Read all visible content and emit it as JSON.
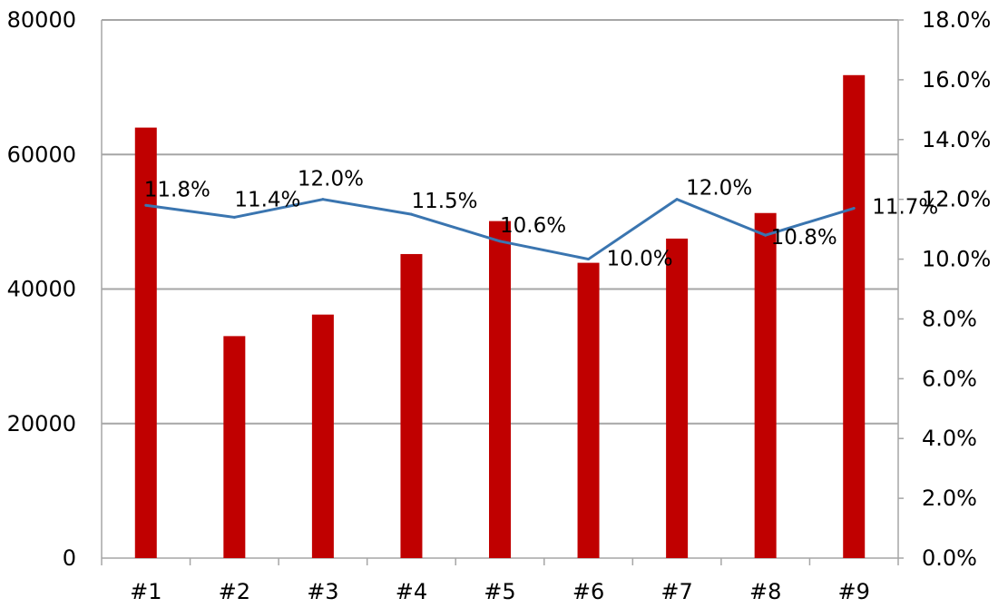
{
  "chart_data": {
    "type": "bar",
    "categories": [
      "#1",
      "#2",
      "#3",
      "#4",
      "#5",
      "#6",
      "#7",
      "#8",
      "#9"
    ],
    "series": [
      {
        "type": "bar",
        "axis": "left",
        "values": [
          64000,
          33000,
          36200,
          45200,
          50100,
          43900,
          47500,
          51300,
          71800
        ]
      },
      {
        "type": "line",
        "axis": "right",
        "values": [
          11.8,
          11.4,
          12.0,
          11.5,
          10.6,
          10.0,
          12.0,
          10.8,
          11.7
        ],
        "data_labels": [
          "11.8%",
          "11.4%",
          "12.0%",
          "11.5%",
          "10.6%",
          "10.0%",
          "12.0%",
          "10.8%",
          "11.7%"
        ]
      }
    ],
    "y_left": {
      "range": [
        0,
        80000
      ],
      "ticks": [
        "0",
        "20000",
        "40000",
        "60000",
        "80000"
      ]
    },
    "y_right": {
      "range": [
        0,
        18
      ],
      "ticks": [
        "0.0%",
        "2.0%",
        "4.0%",
        "6.0%",
        "8.0%",
        "10.0%",
        "12.0%",
        "14.0%",
        "16.0%",
        "18.0%"
      ]
    },
    "grid": true,
    "legend": "none",
    "colors": {
      "bar": "#c00000",
      "line": "#3a75b0",
      "grid": "#a6a6a6",
      "axis": "#a6a6a6"
    }
  }
}
